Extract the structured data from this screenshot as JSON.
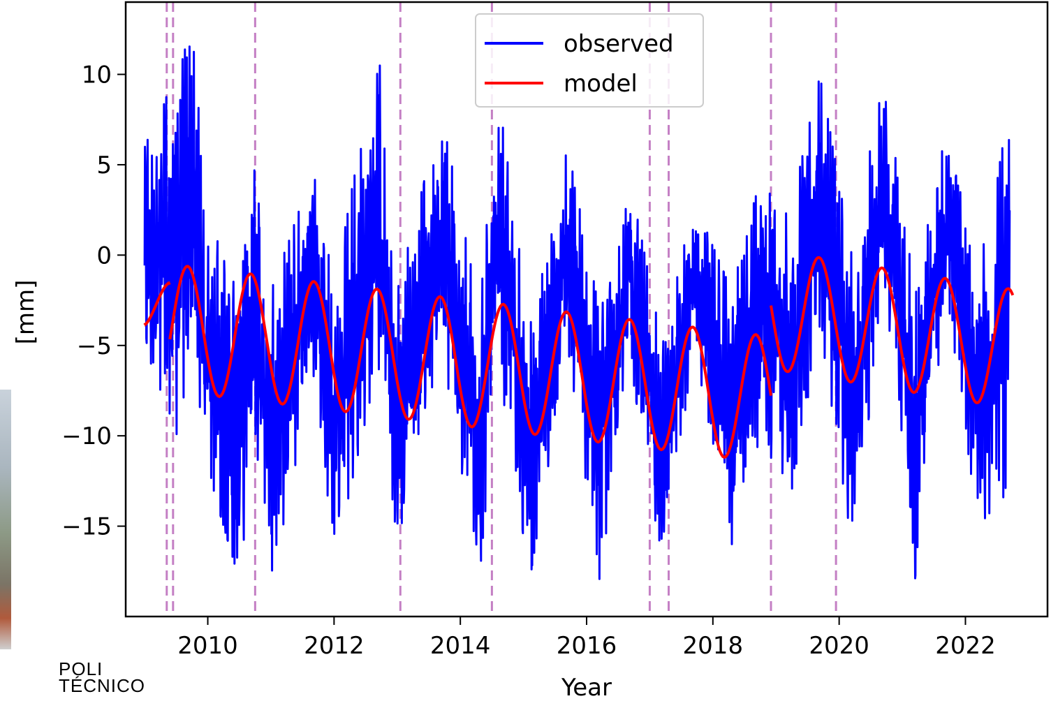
{
  "logo": {
    "line1": "POLI",
    "line2": "TÉCNICO"
  },
  "chart_data": {
    "type": "line",
    "title": "",
    "xlabel": "Year",
    "ylabel": "[mm]",
    "xlim": [
      2008.7,
      2023.3
    ],
    "ylim": [
      -20,
      14
    ],
    "x_ticks": [
      2010,
      2012,
      2014,
      2016,
      2018,
      2020,
      2022
    ],
    "y_ticks": [
      10,
      5,
      0,
      -5,
      -10,
      -15
    ],
    "y_tick_labels": [
      "10",
      "5",
      "0",
      "−5",
      "−10",
      "−15"
    ],
    "grid": false,
    "legend_position": "top-center",
    "colors": {
      "observed": "#0000ff",
      "model": "#ff0000",
      "breaks": "#c47fc4"
    },
    "breaks": [
      2009.35,
      2009.45,
      2010.75,
      2013.05,
      2014.5,
      2017.0,
      2017.3,
      2018.92,
      2019.95
    ],
    "series": [
      {
        "name": "observed",
        "x_start": 2009.0,
        "x_end": 2022.7,
        "envelope": [
          [
            2009.0,
            -5,
            6
          ],
          [
            2009.5,
            -10,
            10
          ],
          [
            2009.75,
            -6,
            12.5
          ],
          [
            2010.0,
            -12,
            2
          ],
          [
            2010.5,
            -18,
            -2
          ],
          [
            2010.75,
            -10,
            5
          ],
          [
            2011.0,
            -18,
            -2
          ],
          [
            2011.7,
            -7,
            5
          ],
          [
            2012.0,
            -17,
            -2
          ],
          [
            2012.7,
            -6,
            12
          ],
          [
            2013.0,
            -16,
            -2
          ],
          [
            2013.7,
            -5,
            8
          ],
          [
            2014.3,
            -18,
            -3
          ],
          [
            2014.6,
            -6,
            9
          ],
          [
            2015.1,
            -18,
            -4
          ],
          [
            2015.7,
            -5,
            6
          ],
          [
            2016.2,
            -18,
            -3
          ],
          [
            2016.7,
            -6,
            4
          ],
          [
            2017.2,
            -18,
            -5
          ],
          [
            2017.7,
            -5,
            3
          ],
          [
            2018.3,
            -16,
            -2
          ],
          [
            2018.8,
            -10,
            5
          ],
          [
            2019.2,
            -14,
            2
          ],
          [
            2019.7,
            -4,
            10
          ],
          [
            2020.2,
            -16,
            0
          ],
          [
            2020.7,
            -3,
            10
          ],
          [
            2021.2,
            -18,
            -2
          ],
          [
            2021.7,
            -2,
            7
          ],
          [
            2022.2,
            -15,
            -1
          ],
          [
            2022.7,
            -13,
            8
          ]
        ]
      },
      {
        "name": "model",
        "segments": [
          {
            "x0": 2009.0,
            "x1": 2009.4,
            "trend0": -2.5,
            "trend1": -3.0,
            "amp": 1.5,
            "phase": 1.55
          },
          {
            "x0": 2009.4,
            "x1": 2018.92,
            "trend0": -4.0,
            "trend1": -8.0,
            "amp": 3.5,
            "phase": 0.0
          },
          {
            "x0": 2018.92,
            "x1": 2022.75,
            "trend0": -3.0,
            "trend1": -5.2,
            "amp": 3.3,
            "phase": 0.0
          }
        ],
        "peak_frac": 0.68
      }
    ]
  }
}
